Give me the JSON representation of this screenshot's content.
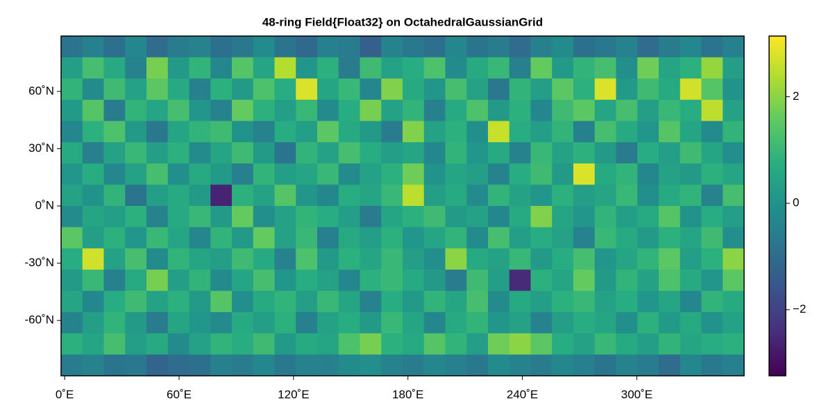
{
  "chart_data": {
    "type": "heatmap",
    "title": "48-ring Field{Float32} on OctahedralGaussianGrid",
    "colormap": "viridis",
    "xlim": [
      -1.875,
      356.25
    ],
    "ylim": [
      -89,
      89
    ],
    "xticks": [
      {
        "value": 0,
        "label": "0˚E"
      },
      {
        "value": 60,
        "label": "60˚E"
      },
      {
        "value": 120,
        "label": "120˚E"
      },
      {
        "value": 180,
        "label": "180˚E"
      },
      {
        "value": 240,
        "label": "240˚E"
      },
      {
        "value": 300,
        "label": "300˚E"
      }
    ],
    "yticks": [
      {
        "value": -60,
        "label": "-60˚N"
      },
      {
        "value": -30,
        "label": "-30˚N"
      },
      {
        "value": 0,
        "label": "0˚N"
      },
      {
        "value": 30,
        "label": "30˚N"
      },
      {
        "value": 60,
        "label": "60˚N"
      }
    ],
    "clim": [
      -3.24,
      3.14
    ],
    "cticks": [
      {
        "value": -2,
        "label": "−2"
      },
      0,
      2
    ],
    "z": [
      [
        -0.8,
        -0.5,
        -0.9,
        -0.3,
        -1.0,
        -0.6,
        -0.4,
        -0.9,
        -0.7,
        -0.2,
        -0.8,
        -1.1,
        -0.5,
        -0.6,
        -1.3,
        -0.4,
        -0.7,
        -0.9,
        -0.3,
        -0.8,
        -0.6,
        -1.0,
        -0.5,
        -0.2,
        -0.9,
        -0.7,
        -0.4,
        -1.0,
        -0.6,
        -0.3,
        -0.8,
        -0.5
      ],
      [
        0.3,
        1.2,
        0.6,
        -0.4,
        1.8,
        0.2,
        0.9,
        -0.3,
        1.4,
        0.5,
        2.4,
        0.1,
        0.8,
        -0.6,
        1.1,
        0.4,
        0.7,
        1.3,
        -0.2,
        0.6,
        1.0,
        -0.5,
        1.6,
        0.2,
        0.9,
        1.2,
        -0.1,
        1.7,
        0.5,
        0.8,
        2.1,
        0.3
      ],
      [
        0.9,
        -0.2,
        1.1,
        0.4,
        1.5,
        0.6,
        -0.5,
        0.8,
        0.2,
        1.3,
        0.7,
        2.8,
        0.5,
        1.0,
        -0.3,
        1.9,
        0.6,
        0.1,
        1.2,
        0.4,
        -0.7,
        0.9,
        0.3,
        1.5,
        0.8,
        2.8,
        0.2,
        1.1,
        0.6,
        2.7,
        1.4,
        0.0
      ],
      [
        0.2,
        1.4,
        -0.6,
        0.9,
        0.5,
        1.2,
        0.1,
        -0.4,
        1.6,
        0.8,
        0.3,
        1.0,
        -0.2,
        0.7,
        1.8,
        0.4,
        0.9,
        -0.5,
        0.6,
        1.3,
        0.2,
        0.8,
        -0.3,
        1.1,
        1.5,
        0.5,
        1.2,
        0.3,
        1.0,
        0.7,
        2.5,
        0.4
      ],
      [
        -0.3,
        0.8,
        1.3,
        0.2,
        -0.7,
        0.5,
        0.9,
        1.1,
        0.0,
        -0.4,
        0.7,
        0.3,
        1.5,
        0.6,
        0.2,
        -0.6,
        1.9,
        0.4,
        0.8,
        -0.1,
        2.6,
        0.7,
        0.3,
        0.9,
        -0.5,
        1.2,
        0.6,
        0.1,
        1.4,
        0.5,
        -0.2,
        0.9
      ],
      [
        0.6,
        -0.5,
        0.4,
        1.0,
        0.3,
        0.8,
        -0.2,
        0.5,
        1.1,
        0.2,
        -0.8,
        0.9,
        0.4,
        1.2,
        0.7,
        0.3,
        0.5,
        -0.3,
        0.9,
        0.1,
        0.6,
        -0.4,
        1.0,
        0.4,
        0.8,
        0.2,
        -0.6,
        0.7,
        0.3,
        1.1,
        0.5,
        -0.1
      ],
      [
        0.1,
        0.7,
        -0.3,
        0.4,
        1.2,
        -0.1,
        0.6,
        0.2,
        -0.5,
        0.9,
        0.3,
        0.5,
        1.0,
        -0.2,
        0.4,
        0.8,
        1.7,
        0.0,
        0.5,
        0.3,
        -0.4,
        0.7,
        1.1,
        0.2,
        2.8,
        0.6,
        0.9,
        -0.3,
        0.4,
        0.2,
        0.8,
        0.5
      ],
      [
        0.4,
        0.0,
        0.9,
        -0.8,
        0.3,
        0.6,
        0.2,
        -2.6,
        0.8,
        0.4,
        1.4,
        0.1,
        -0.3,
        0.7,
        0.5,
        1.0,
        2.5,
        0.3,
        0.6,
        -0.2,
        0.9,
        0.4,
        0.1,
        0.8,
        0.3,
        0.5,
        1.0,
        -0.1,
        0.6,
        0.9,
        -0.4,
        1.2
      ],
      [
        -0.2,
        0.5,
        0.3,
        0.8,
        -0.4,
        0.6,
        1.0,
        0.2,
        1.6,
        -0.1,
        0.4,
        0.9,
        0.7,
        0.3,
        -0.6,
        0.5,
        0.8,
        1.1,
        0.2,
        0.4,
        -0.3,
        0.6,
        1.9,
        0.5,
        0.1,
        0.9,
        0.3,
        0.6,
        1.4,
        0.0,
        0.7,
        0.3
      ],
      [
        1.5,
        0.3,
        0.8,
        0.1,
        1.0,
        0.5,
        -0.3,
        0.9,
        0.2,
        1.6,
        0.4,
        1.0,
        -0.5,
        0.6,
        0.3,
        0.8,
        0.1,
        0.5,
        0.9,
        -0.2,
        1.2,
        0.3,
        0.7,
        0.4,
        -0.4,
        1.0,
        0.6,
        0.2,
        0.8,
        0.5,
        1.1,
        -0.1
      ],
      [
        0.7,
        2.7,
        0.4,
        1.2,
        -0.2,
        0.9,
        0.5,
        0.3,
        1.1,
        0.6,
        -0.4,
        1.3,
        0.2,
        0.8,
        0.5,
        1.0,
        0.3,
        -0.1,
        2.0,
        0.6,
        0.4,
        1.0,
        0.2,
        0.7,
        1.2,
        0.1,
        0.5,
        0.9,
        1.5,
        0.3,
        0.8,
        2.0
      ],
      [
        0.2,
        1.0,
        -0.5,
        0.6,
        1.8,
        0.3,
        0.9,
        -0.2,
        0.5,
        1.2,
        0.1,
        0.7,
        0.4,
        -0.3,
        0.8,
        1.0,
        0.6,
        0.2,
        -0.6,
        1.1,
        0.3,
        -2.5,
        0.8,
        0.5,
        1.6,
        0.2,
        0.9,
        0.4,
        1.3,
        0.6,
        0.1,
        1.5
      ],
      [
        0.5,
        -0.3,
        0.7,
        1.1,
        0.4,
        0.8,
        0.2,
        1.4,
        -0.1,
        0.6,
        0.9,
        0.3,
        1.0,
        0.5,
        -0.4,
        0.7,
        0.2,
        0.9,
        0.5,
        1.2,
        -0.2,
        0.6,
        0.3,
        0.8,
        1.0,
        0.4,
        0.7,
        0.1,
        0.5,
        -0.3,
        0.9,
        0.6
      ],
      [
        -0.4,
        0.3,
        0.9,
        0.2,
        -0.6,
        0.5,
        0.1,
        -0.2,
        0.6,
        0.3,
        0.8,
        -0.5,
        0.4,
        0.7,
        0.2,
        1.0,
        0.5,
        -0.3,
        0.6,
        0.9,
        0.1,
        0.4,
        -0.4,
        0.3,
        0.7,
        0.5,
        -0.1,
        0.8,
        0.2,
        0.6,
        0.0,
        0.4
      ],
      [
        0.8,
        0.5,
        1.2,
        0.3,
        0.6,
        -0.2,
        0.4,
        0.9,
        0.7,
        1.1,
        0.2,
        0.6,
        0.5,
        1.3,
        1.8,
        0.8,
        0.6,
        1.4,
        0.9,
        0.3,
        1.7,
        2.0,
        1.5,
        0.7,
        0.4,
        1.0,
        0.6,
        0.3,
        0.9,
        0.5,
        0.7,
        0.8
      ],
      [
        -0.6,
        -0.4,
        -0.8,
        -0.7,
        -1.2,
        -1.0,
        -0.9,
        -0.5,
        -0.6,
        -0.3,
        -0.7,
        -0.4,
        -0.5,
        -0.2,
        -0.1,
        -0.4,
        -0.6,
        -0.3,
        -0.5,
        -0.7,
        -0.2,
        -0.4,
        -0.6,
        -0.3,
        -0.5,
        -0.8,
        -0.4,
        -0.6,
        -1.0,
        -0.3,
        -0.7,
        -0.5
      ]
    ]
  }
}
